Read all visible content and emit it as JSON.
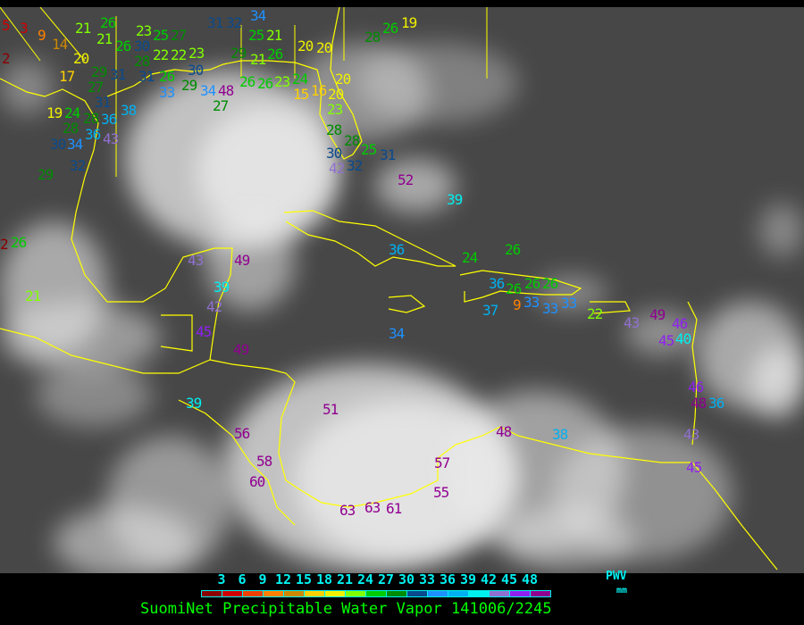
{
  "title": "SuomiNet Precipitable Water Vapor 141006/2245",
  "legend": {
    "ticks": [
      "3",
      "6",
      "9",
      "12",
      "15",
      "18",
      "21",
      "24",
      "27",
      "30",
      "33",
      "36",
      "39",
      "42",
      "45",
      "48"
    ],
    "unit_label": "PWV",
    "unit": "mm",
    "colors": [
      "#8b0000",
      "#d00000",
      "#f04000",
      "#ff8000",
      "#cc8800",
      "#ffd000",
      "#f0f000",
      "#80ff00",
      "#00cc00",
      "#008c00",
      "#0a4a8c",
      "#1e90ff",
      "#00b0f0",
      "#00f0f0",
      "#9070d0",
      "#9020f0",
      "#900090"
    ]
  },
  "coastline_color": "#ffff00",
  "stations": [
    "5",
    "3",
    "9",
    "21",
    "26",
    "14",
    "2",
    "20",
    "17",
    "29",
    "31",
    "27",
    "31",
    "21",
    "26",
    "30",
    "23",
    "25",
    "27",
    "28",
    "22",
    "22",
    "23",
    "30",
    "31",
    "26",
    "29",
    "33",
    "34",
    "48",
    "27",
    "31",
    "32",
    "34",
    "29",
    "21",
    "26",
    "25",
    "21",
    "20",
    "20",
    "26",
    "26",
    "23",
    "24",
    "15",
    "16",
    "20",
    "23",
    "20",
    "28",
    "28",
    "25",
    "30",
    "42",
    "32",
    "31",
    "28",
    "26",
    "19",
    "19",
    "24",
    "28",
    "28",
    "36",
    "36",
    "38",
    "34",
    "43",
    "30",
    "32",
    "29",
    "2",
    "26",
    "21",
    "52",
    "39",
    "36",
    "24",
    "26",
    "36",
    "26",
    "26",
    "26",
    "33",
    "9",
    "37",
    "33",
    "33",
    "22",
    "43",
    "49",
    "46",
    "40",
    "45",
    "34",
    "43",
    "49",
    "39",
    "42",
    "45",
    "49",
    "39",
    "51",
    "56",
    "58",
    "60",
    "57",
    "55",
    "63",
    "63",
    "61",
    "48",
    "38",
    "46",
    "48",
    "36",
    "43",
    "45"
  ]
}
